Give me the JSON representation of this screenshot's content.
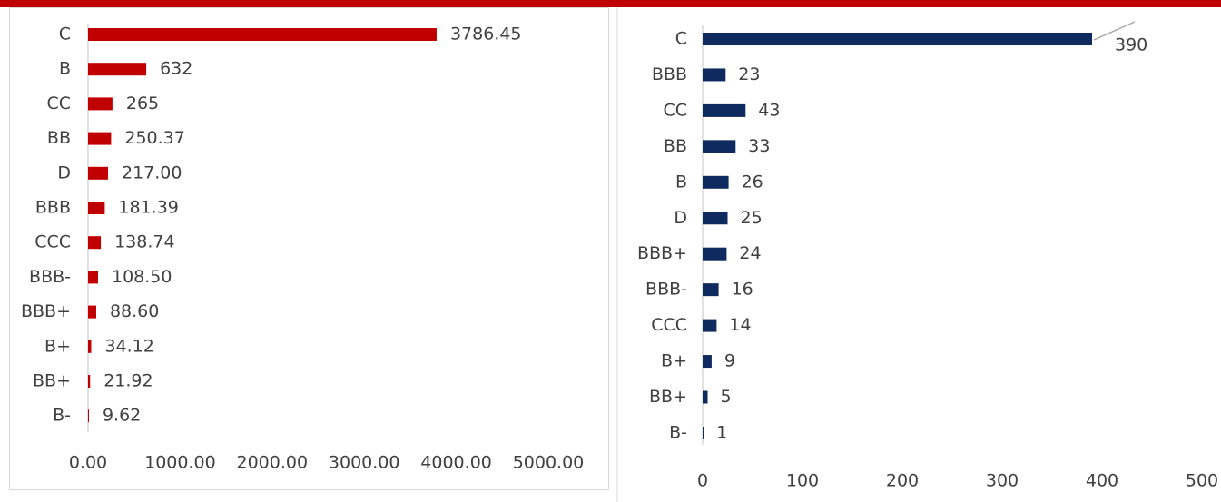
{
  "chart_data": [
    {
      "type": "barh",
      "color": "#c00000",
      "categories": [
        "C",
        "B",
        "CC",
        "BB",
        "D",
        "BBB",
        "CCC",
        "BBB-",
        "BBB+",
        "B+",
        "BB+",
        "B-"
      ],
      "values": [
        3786.45,
        632,
        265,
        250.37,
        217,
        181.39,
        138.74,
        108.5,
        88.6,
        34.12,
        21.92,
        9.62
      ],
      "value_labels": [
        "3786.45",
        "632",
        "265",
        "250.37",
        "217.00",
        "181.39",
        "138.74",
        "108.50",
        "88.60",
        "34.12",
        "21.92",
        "9.62"
      ],
      "xlim": [
        0,
        5000
      ],
      "xticks": [
        {
          "value": 0,
          "label": "0.00"
        },
        {
          "value": 1000,
          "label": "1000.00"
        },
        {
          "value": 2000,
          "label": "2000.00"
        },
        {
          "value": 3000,
          "label": "3000.00"
        },
        {
          "value": 4000,
          "label": "4000.00"
        },
        {
          "value": 5000,
          "label": "5000.00"
        }
      ]
    },
    {
      "type": "barh",
      "color": "#0e2a5e",
      "categories": [
        "C",
        "BBB",
        "CC",
        "BB",
        "B",
        "D",
        "BBB+",
        "BBB-",
        "CCC",
        "B+",
        "BB+",
        "B-"
      ],
      "values": [
        390,
        23,
        43,
        33,
        26,
        25,
        24,
        16,
        14,
        9,
        5,
        1
      ],
      "xlim": [
        0,
        500
      ],
      "xticks": [
        0,
        100,
        200,
        300,
        400,
        500
      ]
    }
  ]
}
